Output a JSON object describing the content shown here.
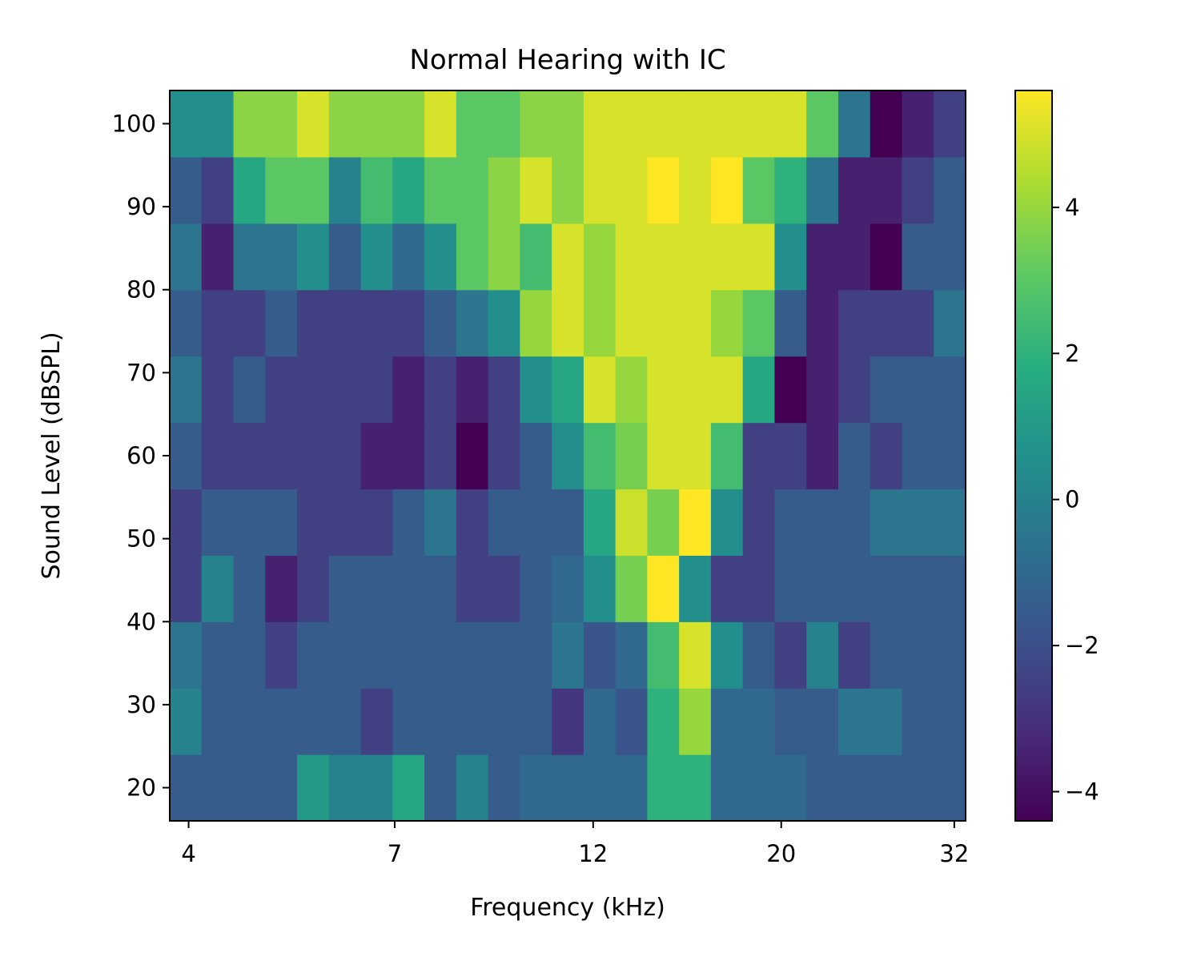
{
  "chart_data": {
    "type": "heatmap",
    "title": "Normal Hearing with IC",
    "xlabel": "Frequency (kHz)",
    "ylabel": "Sound Level (dBSPL)",
    "x_scale": "log",
    "x_range_khz": [
      3.8,
      33.0
    ],
    "x_ticks": [
      4,
      7,
      12,
      20,
      32
    ],
    "x_tick_labels": [
      "4",
      "7",
      "12",
      "20",
      "32"
    ],
    "y_range": [
      16,
      104
    ],
    "y_ticks": [
      20,
      30,
      40,
      50,
      60,
      70,
      80,
      90,
      100
    ],
    "y_tick_labels": [
      "20",
      "30",
      "40",
      "50",
      "60",
      "70",
      "80",
      "90",
      "100"
    ],
    "y_levels": [
      20,
      28,
      36,
      44,
      52,
      60,
      68,
      76,
      84,
      92,
      100
    ],
    "n_freq_bins": 25,
    "colormap": "viridis",
    "colorbar": {
      "vmin": -4.4,
      "vmax": 5.6,
      "ticks": [
        -4,
        -2,
        0,
        2,
        4
      ],
      "tick_labels": [
        "−4",
        "−2",
        "0",
        "2",
        "4"
      ]
    },
    "values": [
      [
        -1.5,
        -1.5,
        -1.5,
        -1.5,
        1.0,
        0.0,
        0.0,
        1.5,
        -1.5,
        0.0,
        -1.5,
        -1.0,
        -1.0,
        -1.0,
        -1.0,
        2.0,
        2.0,
        -1.0,
        -1.0,
        -1.0,
        -1.5,
        -1.5,
        -1.5,
        -1.5,
        -1.5
      ],
      [
        0.0,
        -1.5,
        -1.5,
        -1.5,
        -1.5,
        -1.5,
        -2.5,
        -1.5,
        -1.5,
        -1.5,
        -1.5,
        -1.5,
        -2.8,
        -1.0,
        -1.8,
        2.0,
        4.0,
        -1.0,
        -1.0,
        -1.5,
        -1.5,
        -0.5,
        -0.5,
        -1.5,
        -1.5
      ],
      [
        -0.5,
        -1.5,
        -1.5,
        -2.5,
        -1.5,
        -1.5,
        -1.5,
        -1.5,
        -1.5,
        -1.5,
        -1.5,
        -1.5,
        -0.5,
        -1.8,
        -1.0,
        2.5,
        5.0,
        0.5,
        -1.5,
        -2.5,
        0.0,
        -2.5,
        -1.5,
        -1.5,
        -1.5
      ],
      [
        -2.5,
        0.0,
        -1.5,
        -3.5,
        -2.5,
        -1.5,
        -1.5,
        -1.5,
        -1.5,
        -2.5,
        -2.5,
        -1.5,
        -1.0,
        0.5,
        3.5,
        5.6,
        0.5,
        -2.5,
        -2.5,
        -1.5,
        -1.5,
        -1.5,
        -1.5,
        -1.5,
        -1.5
      ],
      [
        -2.5,
        -1.5,
        -1.5,
        -1.5,
        -2.5,
        -2.5,
        -2.5,
        -1.5,
        -0.5,
        -2.5,
        -1.5,
        -1.5,
        -1.5,
        1.5,
        4.8,
        3.5,
        5.6,
        0.5,
        -2.5,
        -1.5,
        -1.5,
        -1.5,
        -0.5,
        -0.5,
        -0.5
      ],
      [
        -1.5,
        -2.5,
        -2.5,
        -2.5,
        -2.5,
        -2.5,
        -3.5,
        -3.5,
        -2.5,
        -4.4,
        -2.5,
        -1.5,
        0.5,
        2.5,
        3.5,
        5.0,
        5.0,
        2.5,
        -2.5,
        -2.5,
        -3.5,
        -1.5,
        -2.5,
        -1.5,
        -1.5
      ],
      [
        -0.5,
        -2.5,
        -1.5,
        -2.5,
        -2.5,
        -2.5,
        -2.5,
        -3.5,
        -2.5,
        -3.5,
        -2.5,
        0.5,
        1.5,
        5.0,
        4.0,
        5.0,
        5.0,
        5.0,
        1.5,
        -4.4,
        -3.5,
        -2.5,
        -1.5,
        -1.5,
        -1.5
      ],
      [
        -1.5,
        -2.5,
        -2.5,
        -1.5,
        -2.5,
        -2.5,
        -2.5,
        -2.5,
        -1.5,
        -0.5,
        0.5,
        4.0,
        5.0,
        4.0,
        5.0,
        5.0,
        5.0,
        4.0,
        3.0,
        -1.5,
        -3.5,
        -2.5,
        -2.5,
        -2.5,
        -0.5
      ],
      [
        -0.5,
        -3.5,
        -0.5,
        -0.5,
        0.5,
        -1.5,
        0.5,
        -1.0,
        0.5,
        3.0,
        3.8,
        2.5,
        5.0,
        4.0,
        5.0,
        5.0,
        5.0,
        5.0,
        5.0,
        0.5,
        -3.5,
        -3.5,
        -4.4,
        -1.5,
        -1.5
      ],
      [
        -1.5,
        -2.5,
        1.5,
        3.0,
        3.0,
        0.0,
        2.5,
        1.5,
        3.0,
        3.0,
        3.8,
        5.0,
        3.8,
        5.0,
        5.0,
        5.6,
        5.0,
        5.6,
        3.0,
        2.0,
        -0.5,
        -3.5,
        -3.5,
        -2.5,
        -1.5
      ],
      [
        0.5,
        0.5,
        3.8,
        3.8,
        5.0,
        3.8,
        3.8,
        3.8,
        5.0,
        3.0,
        3.0,
        3.8,
        3.8,
        5.0,
        5.0,
        5.0,
        5.0,
        5.0,
        5.0,
        5.0,
        3.0,
        -0.5,
        -4.4,
        -3.5,
        -2.5
      ]
    ]
  }
}
